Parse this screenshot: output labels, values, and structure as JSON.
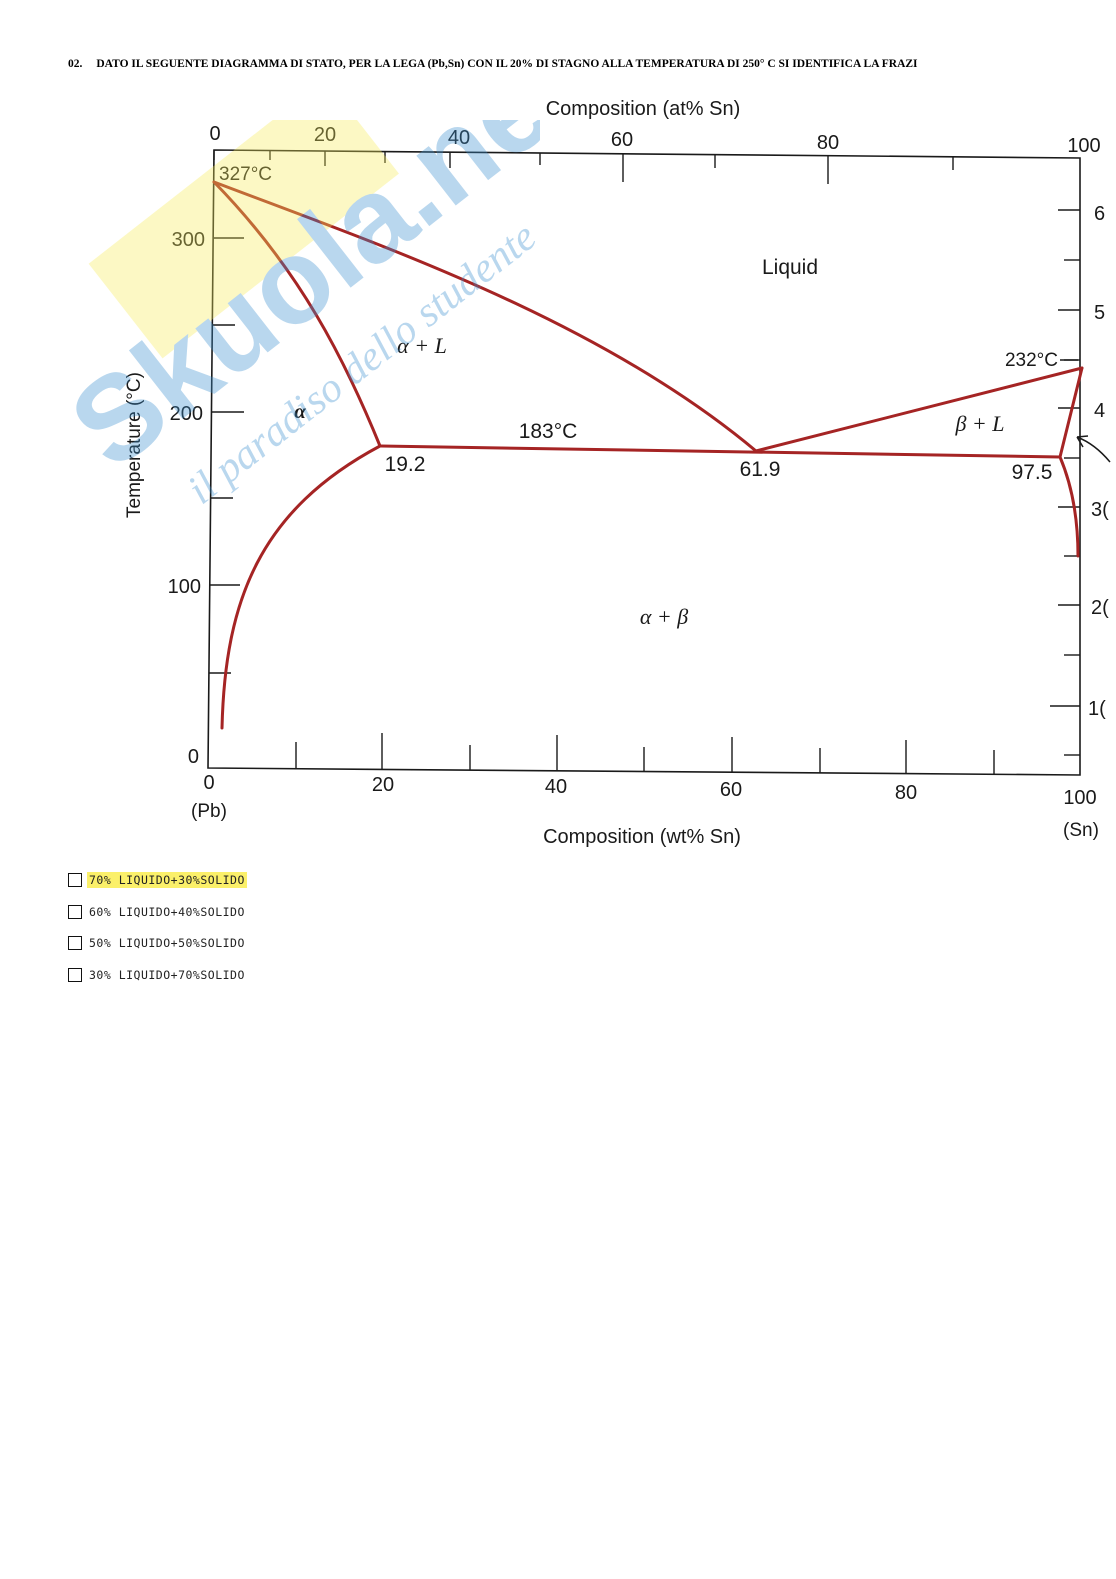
{
  "question": {
    "number": "02.",
    "text": "DATO IL SEGUENTE DIAGRAMMA DI STATO, PER LA LEGA (Pb,Sn) CON IL 20% DI STAGNO ALLA TEMPERATURA DI 250° C SI IDENTIFICA LA FRAZI"
  },
  "diagram": {
    "top_axis_title": "Composition (at% Sn)",
    "top_ticks": [
      "0",
      "20",
      "40",
      "60",
      "80",
      "100"
    ],
    "bottom_axis_title": "Composition (wt% Sn)",
    "bottom_ticks": [
      "0",
      "20",
      "40",
      "60",
      "80",
      "100"
    ],
    "bottom_end_labels": {
      "left": "(Pb)",
      "right": "(Sn)"
    },
    "left_axis_title": "Temperature (°C)",
    "left_ticks": [
      "0",
      "100",
      "200",
      "300"
    ],
    "right_ticks": [
      "1(",
      "2(",
      "3(",
      "4",
      "5",
      "6"
    ],
    "regions": {
      "liquid": "Liquid",
      "alpha_plus_l": "α + L",
      "alpha": "α",
      "beta_plus_l": "β + L",
      "alpha_plus_beta": "α + β"
    },
    "point_labels": {
      "pb_melting": "327°C",
      "sn_melting": "232°C",
      "eutectic_temp": "183°C",
      "alpha_solubility": "19.2",
      "eutectic_comp": "61.9",
      "beta_solubility": "97.5"
    },
    "watermark": {
      "brand": "Skuola.net",
      "tagline": "il paradiso dello studente"
    }
  },
  "answers": [
    {
      "label": "70% LIQUIDO+30%SOLIDO",
      "highlighted": true
    },
    {
      "label": "60% LIQUIDO+40%SOLIDO",
      "highlighted": false
    },
    {
      "label": "50% LIQUIDO+50%SOLIDO",
      "highlighted": false
    },
    {
      "label": "30% LIQUIDO+70%SOLIDO",
      "highlighted": false
    }
  ],
  "colors": {
    "phase_line": "#a52424",
    "frame": "#1a1a1a",
    "highlight": "#fbf06a",
    "watermark_blue": "#3a8fd0",
    "watermark_yellow": "#f7ec5a"
  }
}
